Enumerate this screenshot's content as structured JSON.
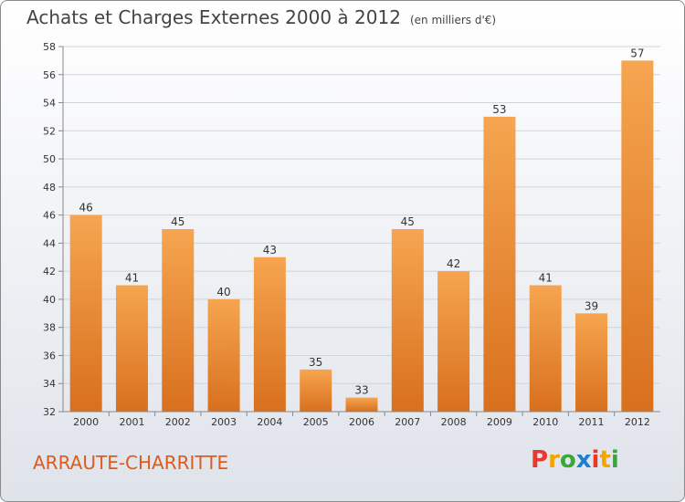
{
  "header": {
    "title": "Achats et Charges Externes 2000 à 2012",
    "unit": "(en milliers d'€)"
  },
  "footer": {
    "commune": "ARRAUTE-CHARRITTE",
    "brand": "Proxiti",
    "brand_colors": [
      "#e8392d",
      "#f2a400",
      "#3aa63b",
      "#1e7fd0",
      "#e8392d",
      "#f2a400",
      "#3aa63b"
    ]
  },
  "colors": {
    "bar_top": "#f6a550",
    "bar_bottom": "#d8701e",
    "commune_text": "#e05a1c"
  },
  "chart_data": {
    "type": "bar",
    "categories": [
      "2000",
      "2001",
      "2002",
      "2003",
      "2004",
      "2005",
      "2006",
      "2007",
      "2008",
      "2009",
      "2010",
      "2011",
      "2012"
    ],
    "values": [
      46,
      41,
      45,
      40,
      43,
      35,
      33,
      45,
      42,
      53,
      41,
      39,
      57
    ],
    "data_labels": [
      "46",
      "41",
      "45",
      "40",
      "43",
      "35",
      "33",
      "45",
      "42",
      "53",
      "41",
      "39",
      "57"
    ],
    "ylim": [
      32,
      58
    ],
    "yticks": [
      "32",
      "34",
      "36",
      "38",
      "40",
      "42",
      "44",
      "46",
      "48",
      "50",
      "52",
      "54",
      "56",
      "58"
    ],
    "grid": true
  }
}
